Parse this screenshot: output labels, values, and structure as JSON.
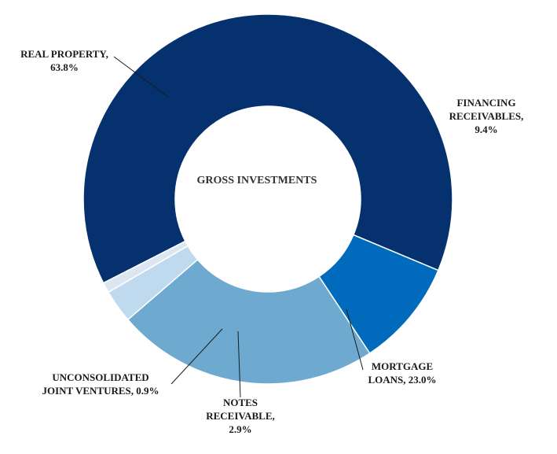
{
  "chart_data": {
    "type": "pie",
    "variant": "donut",
    "center_label": "GROSS INVESTMENTS",
    "slices": [
      {
        "name": "REAL PROPERTY",
        "value": 63.8,
        "value_label": "63.8%",
        "label_lines": [
          "REAL PROPERTY,",
          "63.8%"
        ],
        "color": "#05316F"
      },
      {
        "name": "FINANCING RECEIVABLES",
        "value": 9.4,
        "value_label": "9.4%",
        "label_lines": [
          "FINANCING",
          "RECEIVABLES,",
          "9.4%"
        ],
        "color": "#006BBC"
      },
      {
        "name": "MORTGAGE LOANS",
        "value": 23.0,
        "value_label": "23.0%",
        "label_lines": [
          "MORTGAGE",
          "LOANS, 23.0%"
        ],
        "color": "#6EAAD0"
      },
      {
        "name": "NOTES RECEIVABLE",
        "value": 2.9,
        "value_label": "2.9%",
        "label_lines": [
          "NOTES",
          "RECEIVABLE,",
          "2.9%"
        ],
        "color": "#BFD9EF"
      },
      {
        "name": "UNCONSOLIDATED JOINT VENTURES",
        "value": 0.9,
        "value_label": "0.9%",
        "label_lines": [
          "UNCONSOLIDATED",
          "JOINT VENTURES, 0.9%"
        ],
        "color": "#DCE6F3"
      }
    ]
  }
}
